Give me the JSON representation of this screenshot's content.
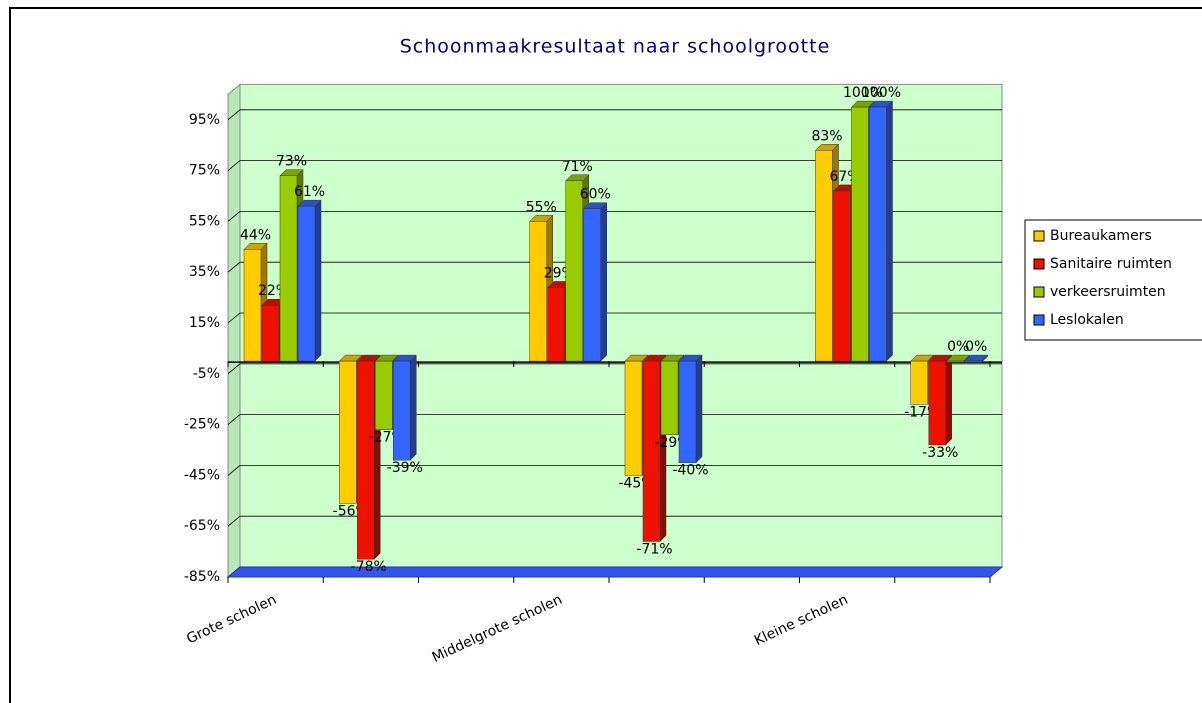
{
  "chart_data": {
    "type": "bar",
    "title": "Schoonmaakresultaat naar schoolgrootte",
    "categories": [
      "Grote scholen",
      null,
      null,
      "Middelgrote scholen",
      null,
      null,
      "Kleine scholen",
      null
    ],
    "series": [
      {
        "name": "Bureaukamers",
        "color": "#ffcc00",
        "values": [
          44,
          -56,
          null,
          55,
          -45,
          null,
          83,
          -17
        ],
        "value_labels": [
          "44%",
          "-56%",
          null,
          "55%",
          "-45%",
          null,
          "83%",
          "-17%"
        ]
      },
      {
        "name": "Sanitaire ruimten",
        "color": "#ee1100",
        "values": [
          22,
          -78,
          null,
          29,
          -71,
          null,
          67,
          -33
        ],
        "value_labels": [
          "22%",
          "-78%",
          null,
          "29%",
          "-71%",
          null,
          "67%",
          "-33%"
        ]
      },
      {
        "name": "verkeersruimten",
        "color": "#99cc00",
        "values": [
          73,
          -27,
          null,
          71,
          -29,
          null,
          100,
          0
        ],
        "value_labels": [
          "73%",
          "-27%",
          null,
          "71%",
          "-29%",
          null,
          "100%",
          "0%"
        ]
      },
      {
        "name": "Leslokalen",
        "color": "#3366ff",
        "values": [
          61,
          -39,
          null,
          60,
          -40,
          null,
          100,
          0
        ],
        "value_labels": [
          "61%",
          "-39%",
          null,
          "60%",
          "-40%",
          null,
          "100%",
          "0%"
        ]
      }
    ],
    "ylim": [
      -85,
      105
    ],
    "yticks": [
      {
        "value": -85,
        "label": "-85%"
      },
      {
        "value": -65,
        "label": "-65%"
      },
      {
        "value": -45,
        "label": "-45%"
      },
      {
        "value": -25,
        "label": "-25%"
      },
      {
        "value": -5,
        "label": "-5%"
      },
      {
        "value": 15,
        "label": "15%"
      },
      {
        "value": 35,
        "label": "35%"
      },
      {
        "value": 55,
        "label": "55%"
      },
      {
        "value": 75,
        "label": "75%"
      },
      {
        "value": 95,
        "label": "95%"
      }
    ],
    "grid": true
  }
}
